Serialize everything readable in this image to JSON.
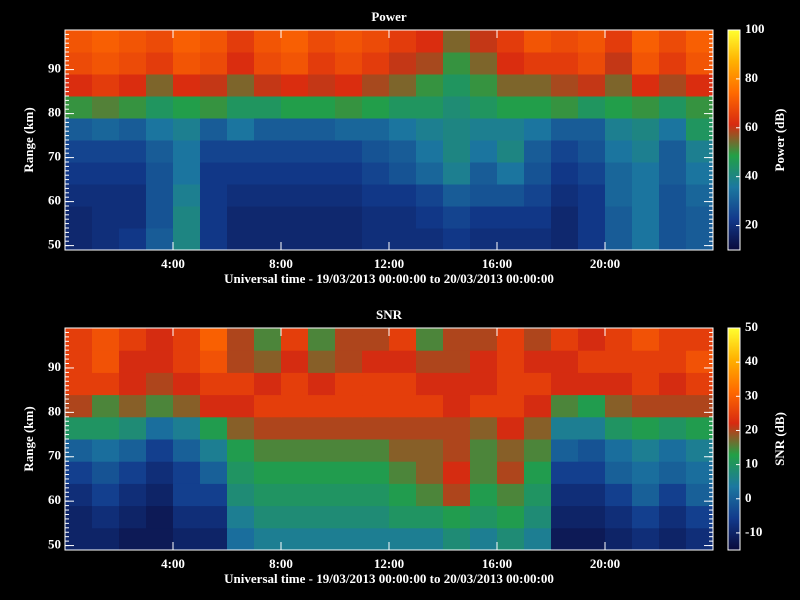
{
  "chart_data": [
    {
      "type": "heatmap",
      "title": "Power",
      "xlabel": "Universal time - 19/03/2013 00:00:00 to 20/03/2013 00:00:00",
      "ylabel": "Range (km)",
      "colorbar_label": "Power (dB)",
      "xlim": [
        0,
        24
      ],
      "xticks": [
        {
          "value": 4,
          "label": "4:00"
        },
        {
          "value": 8,
          "label": "8:00"
        },
        {
          "value": 12,
          "label": "12:00"
        },
        {
          "value": 16,
          "label": "16:00"
        },
        {
          "value": 20,
          "label": "20:00"
        }
      ],
      "ylim": [
        49,
        99
      ],
      "yticks": [
        50,
        60,
        70,
        80,
        90
      ],
      "zlim": [
        10,
        100
      ],
      "zticks": [
        20,
        40,
        60,
        80,
        100
      ],
      "colormap": [
        "#0a0a3c",
        "#123a8c",
        "#1c78a0",
        "#22a046",
        "#d82a10",
        "#ff6a00",
        "#ffb000",
        "#ffff30"
      ],
      "x": [
        0.5,
        1.5,
        2.5,
        3.5,
        4.5,
        5.5,
        6.5,
        7.5,
        8.5,
        9.5,
        10.5,
        11.5,
        12.5,
        13.5,
        14.5,
        15.5,
        16.5,
        17.5,
        18.5,
        19.5,
        20.5,
        21.5,
        22.5,
        23.5
      ],
      "y": [
        51.5,
        56.5,
        61.5,
        66.5,
        71.5,
        76.5,
        81.5,
        86.5,
        91.5,
        96.5
      ],
      "values": [
        [
          18,
          20,
          22,
          30,
          40,
          22,
          18,
          18,
          18,
          18,
          18,
          20,
          20,
          20,
          22,
          20,
          20,
          20,
          18,
          22,
          30,
          35,
          28,
          30
        ],
        [
          18,
          20,
          20,
          28,
          40,
          22,
          18,
          18,
          18,
          18,
          18,
          20,
          20,
          22,
          25,
          22,
          22,
          22,
          18,
          22,
          30,
          35,
          28,
          30
        ],
        [
          20,
          20,
          20,
          28,
          38,
          22,
          20,
          20,
          20,
          20,
          20,
          22,
          22,
          25,
          30,
          28,
          28,
          25,
          20,
          22,
          32,
          35,
          28,
          32
        ],
        [
          22,
          22,
          22,
          28,
          35,
          22,
          22,
          22,
          22,
          22,
          22,
          25,
          28,
          32,
          38,
          30,
          35,
          28,
          22,
          25,
          32,
          35,
          30,
          35
        ],
        [
          25,
          25,
          25,
          30,
          35,
          25,
          25,
          25,
          25,
          25,
          25,
          28,
          30,
          35,
          40,
          35,
          40,
          30,
          25,
          28,
          35,
          38,
          30,
          38
        ],
        [
          30,
          32,
          30,
          35,
          38,
          30,
          35,
          30,
          30,
          30,
          32,
          32,
          35,
          38,
          40,
          38,
          38,
          35,
          30,
          30,
          38,
          40,
          35,
          45
        ],
        [
          50,
          52,
          50,
          45,
          48,
          50,
          45,
          45,
          48,
          48,
          50,
          48,
          45,
          45,
          42,
          45,
          48,
          48,
          50,
          45,
          48,
          50,
          45,
          50
        ],
        [
          62,
          65,
          62,
          55,
          62,
          60,
          55,
          60,
          62,
          60,
          62,
          58,
          55,
          50,
          45,
          50,
          55,
          55,
          58,
          60,
          55,
          62,
          58,
          62
        ],
        [
          68,
          70,
          68,
          65,
          70,
          68,
          62,
          68,
          70,
          65,
          68,
          65,
          60,
          58,
          50,
          55,
          62,
          65,
          65,
          68,
          60,
          70,
          65,
          70
        ],
        [
          70,
          72,
          70,
          68,
          72,
          70,
          65,
          70,
          72,
          68,
          70,
          68,
          65,
          62,
          55,
          60,
          65,
          70,
          68,
          70,
          65,
          72,
          68,
          72
        ]
      ]
    },
    {
      "type": "heatmap",
      "title": "SNR",
      "xlabel": "Universal time - 19/03/2013 00:00:00 to 20/03/2013 00:00:00",
      "ylabel": "Range (km)",
      "colorbar_label": "SNR (dB)",
      "xlim": [
        0,
        24
      ],
      "xticks": [
        {
          "value": 4,
          "label": "4:00"
        },
        {
          "value": 8,
          "label": "8:00"
        },
        {
          "value": 12,
          "label": "12:00"
        },
        {
          "value": 16,
          "label": "16:00"
        },
        {
          "value": 20,
          "label": "20:00"
        }
      ],
      "ylim": [
        49,
        99
      ],
      "yticks": [
        50,
        60,
        70,
        80,
        90
      ],
      "zlim": [
        -15,
        50
      ],
      "zticks": [
        -10,
        0,
        10,
        20,
        30,
        40,
        50
      ],
      "colormap": [
        "#0a0a3c",
        "#123a8c",
        "#1c78a0",
        "#22a046",
        "#d82a10",
        "#ff6a00",
        "#ffb000",
        "#ffff30"
      ],
      "x": [
        0.5,
        1.5,
        2.5,
        3.5,
        4.5,
        5.5,
        6.5,
        7.5,
        8.5,
        9.5,
        10.5,
        11.5,
        12.5,
        13.5,
        14.5,
        15.5,
        16.5,
        17.5,
        18.5,
        19.5,
        20.5,
        21.5,
        22.5,
        23.5
      ],
      "y": [
        51.5,
        56.5,
        61.5,
        66.5,
        71.5,
        76.5,
        81.5,
        86.5,
        91.5,
        96.5
      ],
      "values": [
        [
          -10,
          -10,
          -12,
          -12,
          -10,
          -10,
          2,
          5,
          5,
          5,
          5,
          5,
          5,
          5,
          8,
          5,
          8,
          5,
          -12,
          -12,
          -10,
          -8,
          -10,
          -8
        ],
        [
          -10,
          -8,
          -10,
          -12,
          -8,
          -8,
          5,
          8,
          8,
          8,
          8,
          8,
          10,
          10,
          12,
          10,
          12,
          8,
          -10,
          -10,
          -8,
          -5,
          -8,
          -5
        ],
        [
          -8,
          -5,
          -8,
          -10,
          -5,
          -5,
          8,
          10,
          10,
          10,
          10,
          10,
          12,
          15,
          20,
          12,
          15,
          10,
          -8,
          -8,
          -5,
          0,
          -5,
          0
        ],
        [
          -5,
          -2,
          -5,
          -8,
          -5,
          0,
          10,
          12,
          12,
          12,
          12,
          12,
          15,
          18,
          22,
          15,
          20,
          12,
          -5,
          -5,
          0,
          2,
          0,
          2
        ],
        [
          0,
          2,
          0,
          -5,
          0,
          5,
          12,
          15,
          15,
          15,
          15,
          15,
          18,
          18,
          20,
          15,
          18,
          15,
          0,
          -2,
          2,
          5,
          2,
          5
        ],
        [
          10,
          10,
          8,
          2,
          5,
          12,
          18,
          20,
          20,
          20,
          20,
          20,
          20,
          20,
          20,
          18,
          22,
          18,
          5,
          5,
          10,
          12,
          10,
          12
        ],
        [
          20,
          15,
          18,
          15,
          18,
          22,
          22,
          25,
          25,
          25,
          25,
          25,
          25,
          25,
          22,
          25,
          25,
          22,
          15,
          12,
          18,
          20,
          20,
          20
        ],
        [
          25,
          25,
          22,
          20,
          22,
          25,
          25,
          22,
          25,
          22,
          25,
          25,
          25,
          22,
          22,
          22,
          25,
          25,
          22,
          22,
          22,
          25,
          22,
          25
        ],
        [
          25,
          28,
          22,
          22,
          25,
          28,
          20,
          18,
          22,
          18,
          20,
          22,
          22,
          20,
          20,
          22,
          25,
          22,
          22,
          25,
          25,
          25,
          25,
          28
        ],
        [
          25,
          28,
          25,
          22,
          25,
          30,
          20,
          15,
          25,
          15,
          20,
          20,
          25,
          15,
          20,
          20,
          25,
          20,
          25,
          22,
          25,
          28,
          25,
          25
        ]
      ]
    }
  ]
}
